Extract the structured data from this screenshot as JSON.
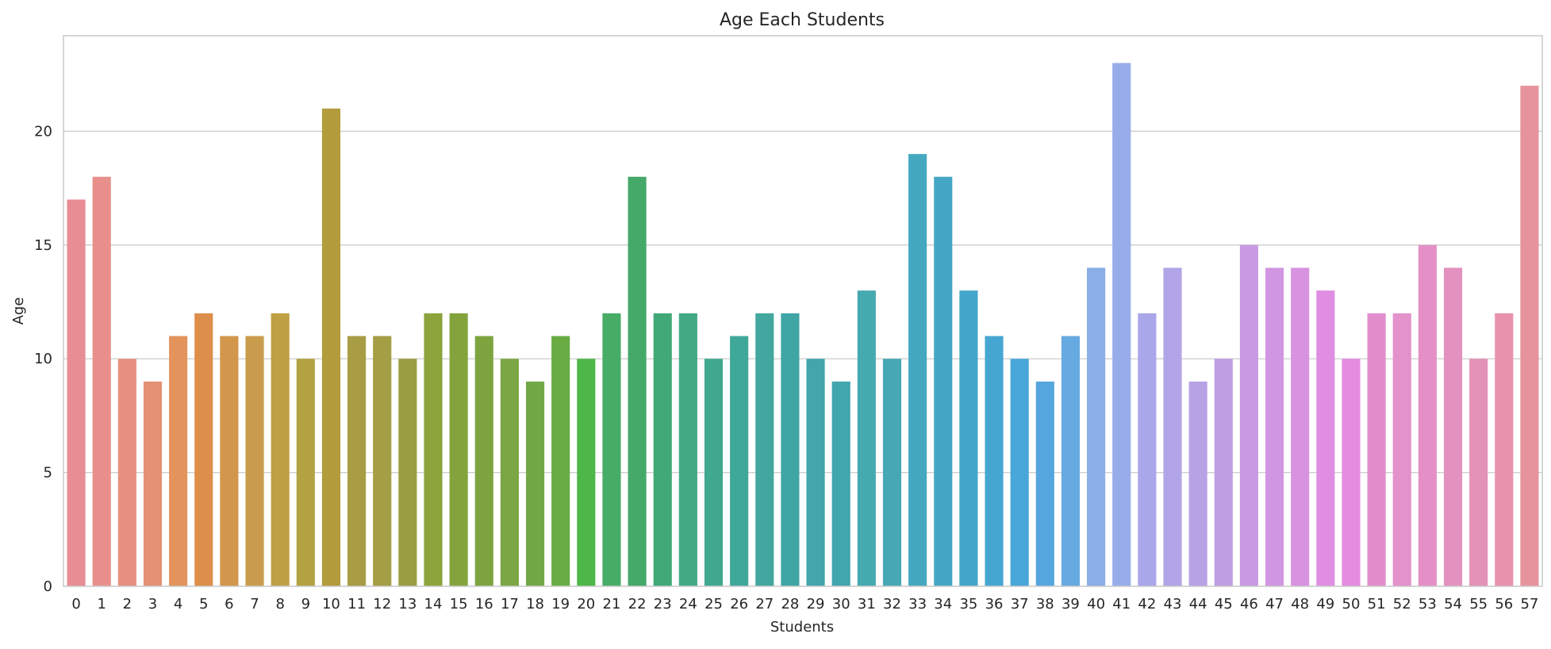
{
  "chart_data": {
    "type": "bar",
    "title": "Age Each Students",
    "xlabel": "Students",
    "ylabel": "Age",
    "ylim": [
      0,
      24.2
    ],
    "yticks": [
      0,
      5,
      10,
      15,
      20
    ],
    "grid": "horizontal",
    "legend": "none",
    "categories": [
      "0",
      "1",
      "2",
      "3",
      "4",
      "5",
      "6",
      "7",
      "8",
      "9",
      "10",
      "11",
      "12",
      "13",
      "14",
      "15",
      "16",
      "17",
      "18",
      "19",
      "20",
      "21",
      "22",
      "23",
      "24",
      "25",
      "26",
      "27",
      "28",
      "29",
      "30",
      "31",
      "32",
      "33",
      "34",
      "35",
      "36",
      "37",
      "38",
      "39",
      "40",
      "41",
      "42",
      "43",
      "44",
      "45",
      "46",
      "47",
      "48",
      "49",
      "50",
      "51",
      "52",
      "53",
      "54",
      "55",
      "56",
      "57"
    ],
    "values": [
      17,
      18,
      10,
      9,
      11,
      12,
      11,
      11,
      12,
      10,
      21,
      11,
      11,
      10,
      12,
      12,
      11,
      10,
      9,
      11,
      10,
      12,
      18,
      12,
      12,
      10,
      11,
      12,
      12,
      10,
      9,
      13,
      10,
      19,
      18,
      13,
      11,
      10,
      9,
      11,
      14,
      23,
      12,
      14,
      9,
      10,
      15,
      14,
      14,
      13,
      10,
      12,
      12,
      15,
      14,
      10,
      12,
      22
    ],
    "colors": [
      "#e98d95",
      "#e98f8b",
      "#e8907f",
      "#e39273",
      "#e3945d",
      "#dd8e4a",
      "#d2974d",
      "#c99c4d",
      "#bfa044",
      "#b3a242",
      "#b29c3c",
      "#a89d44",
      "#a49e44",
      "#9a9d41",
      "#8da43c",
      "#83a43d",
      "#7ea43f",
      "#7aa644",
      "#73a847",
      "#69ac44",
      "#4db748",
      "#47ac66",
      "#45a969",
      "#41a977",
      "#43a983",
      "#40a88f",
      "#40a899",
      "#42a89f",
      "#3fa6a5",
      "#42a6ab",
      "#41a6ad",
      "#45aab0",
      "#45a8b4",
      "#44a9c0",
      "#45a7c4",
      "#43a5c9",
      "#46a6d2",
      "#48a6d9",
      "#55a6df",
      "#67a9e1",
      "#8aaee5",
      "#98acea",
      "#a9a6e9",
      "#b2a5e7",
      "#b8a2e6",
      "#bf9ee3",
      "#c99ae3",
      "#d196e2",
      "#d893e0",
      "#df8ee2",
      "#e48ce0",
      "#e28ecd",
      "#e492cc",
      "#e490c6",
      "#e391bf",
      "#e492b5",
      "#e892ad",
      "#e7939e"
    ]
  }
}
